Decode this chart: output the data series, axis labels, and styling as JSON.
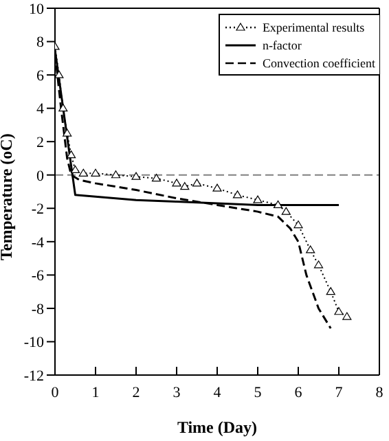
{
  "chart_data": {
    "type": "line",
    "xlabel": "Time (Day)",
    "ylabel": "Temperature (oC)",
    "xlim": [
      0,
      8
    ],
    "xticks": [
      0,
      1,
      2,
      3,
      4,
      5,
      6,
      7,
      8
    ],
    "ylim": [
      -12,
      10
    ],
    "yticks": [
      -12,
      -10,
      -8,
      -6,
      -4,
      -2,
      0,
      2,
      4,
      6,
      8,
      10
    ],
    "grid": false,
    "legend": "top right",
    "ref_lines": [
      {
        "axis": "y",
        "value": 0,
        "color": "#808080",
        "line_style": "dashed"
      }
    ],
    "series": [
      {
        "name": "Experimental results",
        "color": "#000000",
        "marker": "triangle",
        "line_style": "dotted",
        "x": [
          0,
          0.1,
          0.2,
          0.3,
          0.4,
          0.5,
          0.7,
          1,
          1.5,
          2,
          2.5,
          3,
          3.2,
          3.5,
          4,
          4.5,
          5,
          5.5,
          5.7,
          6,
          6.3,
          6.5,
          6.8,
          7,
          7.2
        ],
        "values": [
          7.7,
          6,
          4,
          2.5,
          1.2,
          0.3,
          0.1,
          0.1,
          0,
          -0.1,
          -0.2,
          -0.5,
          -0.7,
          -0.5,
          -0.8,
          -1.2,
          -1.5,
          -1.8,
          -2.2,
          -3,
          -4.5,
          -5.4,
          -7,
          -8.2,
          -8.5
        ]
      },
      {
        "name": "n-factor",
        "color": "#000000",
        "marker": "none",
        "line_style": "solid",
        "x": [
          0,
          0.5,
          1,
          2,
          3,
          4,
          5,
          5.5,
          7
        ],
        "values": [
          7.5,
          -1.2,
          -1.3,
          -1.5,
          -1.6,
          -1.7,
          -1.8,
          -1.8,
          -1.8
        ]
      },
      {
        "name": "Convection coefficient",
        "color": "#000000",
        "marker": "none",
        "line_style": "dashed",
        "x": [
          0,
          0.15,
          0.3,
          0.4,
          0.6,
          1,
          2,
          3,
          4,
          5,
          5.5,
          5.8,
          6,
          6.2,
          6.5,
          6.8
        ],
        "values": [
          7.3,
          4,
          1,
          0,
          -0.3,
          -0.5,
          -0.9,
          -1.4,
          -1.8,
          -2.2,
          -2.5,
          -3.2,
          -4,
          -6,
          -8,
          -9.2
        ]
      }
    ]
  }
}
